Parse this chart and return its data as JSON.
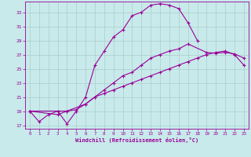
{
  "background_color": "#c8eaea",
  "grid_color": "#aacccc",
  "line_color": "#990099",
  "xlim": [
    -0.5,
    23.5
  ],
  "ylim": [
    16.5,
    34.5
  ],
  "yticks": [
    17,
    19,
    21,
    23,
    25,
    27,
    29,
    31,
    33
  ],
  "xticks": [
    0,
    1,
    2,
    3,
    4,
    5,
    6,
    7,
    8,
    9,
    10,
    11,
    12,
    13,
    14,
    15,
    16,
    17,
    18,
    19,
    20,
    21,
    22,
    23
  ],
  "xlabel": "Windchill (Refroidissement éolien,°C)",
  "line1_x": [
    0,
    1,
    2,
    3,
    4,
    5,
    6,
    7,
    8,
    9,
    10,
    11,
    12,
    13,
    14,
    15,
    16,
    17,
    18
  ],
  "line1_y": [
    19.0,
    17.5,
    18.5,
    19.0,
    17.2,
    19.0,
    21.0,
    25.5,
    27.5,
    29.5,
    30.5,
    32.5,
    33.0,
    34.0,
    34.2,
    34.0,
    33.5,
    31.5,
    29.0
  ],
  "line2_x": [
    0,
    3,
    4,
    5,
    6,
    7,
    8,
    9,
    10,
    11,
    12,
    13,
    14,
    15,
    16,
    17,
    19,
    20,
    21,
    22,
    23
  ],
  "line2_y": [
    19.0,
    18.5,
    19.0,
    19.2,
    20.0,
    21.0,
    22.0,
    23.0,
    24.0,
    24.5,
    25.5,
    26.5,
    27.0,
    27.5,
    27.8,
    28.5,
    27.3,
    27.2,
    27.3,
    27.1,
    26.5
  ],
  "line3_x": [
    0,
    4,
    6,
    7,
    8,
    9,
    10,
    11,
    12,
    13,
    14,
    15,
    16,
    17,
    18,
    19,
    20,
    21,
    22,
    23
  ],
  "line3_y": [
    19.0,
    19.0,
    20.0,
    21.0,
    21.5,
    22.0,
    22.5,
    23.0,
    23.5,
    24.0,
    24.5,
    25.0,
    25.5,
    26.0,
    26.5,
    27.0,
    27.3,
    27.5,
    27.0,
    25.5
  ]
}
